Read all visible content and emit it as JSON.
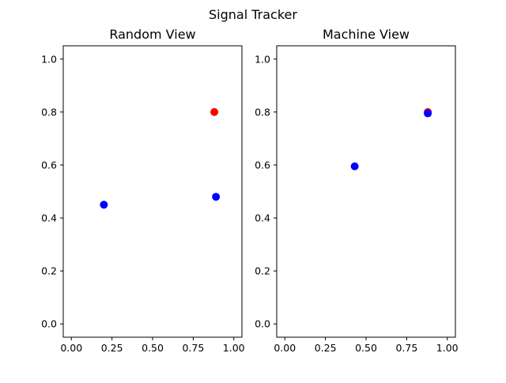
{
  "figure": {
    "title": "Signal Tracker"
  },
  "colors": {
    "red_marker": "#ff0000",
    "blue_marker": "#0000ff",
    "axes": "#000000",
    "background": "#ffffff"
  },
  "chart_data": [
    {
      "type": "scatter",
      "title": "Random View",
      "xlabel": "",
      "ylabel": "",
      "xlim": [
        -0.05,
        1.05
      ],
      "ylim": [
        -0.05,
        1.05
      ],
      "xticks": [
        0.0,
        0.25,
        0.5,
        0.75,
        1.0
      ],
      "xtick_labels": [
        "0.00",
        "0.25",
        "0.50",
        "0.75",
        "1.00"
      ],
      "yticks": [
        0.0,
        0.2,
        0.4,
        0.6,
        0.8,
        1.0
      ],
      "ytick_labels": [
        "0.0",
        "0.2",
        "0.4",
        "0.6",
        "0.8",
        "1.0"
      ],
      "grid": false,
      "points": [
        {
          "x": 0.88,
          "y": 0.8,
          "color": "#ff0000"
        },
        {
          "x": 0.2,
          "y": 0.45,
          "color": "#0000ff"
        },
        {
          "x": 0.89,
          "y": 0.48,
          "color": "#0000ff"
        }
      ]
    },
    {
      "type": "scatter",
      "title": "Machine View",
      "xlabel": "",
      "ylabel": "",
      "xlim": [
        -0.05,
        1.05
      ],
      "ylim": [
        -0.05,
        1.05
      ],
      "xticks": [
        0.0,
        0.25,
        0.5,
        0.75,
        1.0
      ],
      "xtick_labels": [
        "0.00",
        "0.25",
        "0.50",
        "0.75",
        "1.00"
      ],
      "yticks": [
        0.0,
        0.2,
        0.4,
        0.6,
        0.8,
        1.0
      ],
      "ytick_labels": [
        "0.0",
        "0.2",
        "0.4",
        "0.6",
        "0.8",
        "1.0"
      ],
      "grid": false,
      "points": [
        {
          "x": 0.88,
          "y": 0.8,
          "color": "#ff0000"
        },
        {
          "x": 0.43,
          "y": 0.595,
          "color": "#0000ff"
        },
        {
          "x": 0.88,
          "y": 0.795,
          "color": "#0000ff"
        }
      ]
    }
  ]
}
